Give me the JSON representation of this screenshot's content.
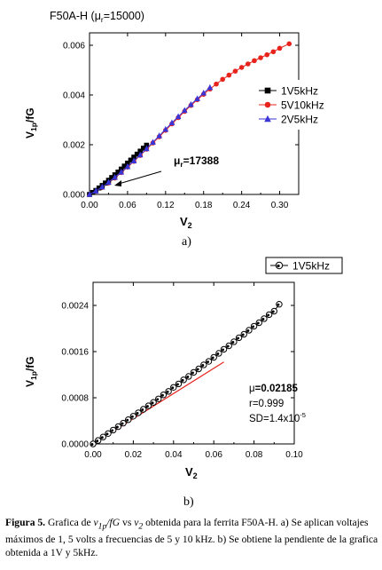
{
  "chart_data": [
    {
      "type": "scatter",
      "title": "F50A-H (μr=15000)",
      "title_main": "F50A-H (",
      "title_mu": "μ",
      "title_sub": "r",
      "title_tail": "=15000)",
      "ylabel_main": "V",
      "ylabel_sub": "1p",
      "ylabel_tail": "/fG",
      "xlabel_main": "V",
      "xlabel_sub": "2",
      "xlim": [
        0,
        0.33
      ],
      "ylim": [
        0,
        0.0065
      ],
      "xticks": [
        "0.00",
        "0.06",
        "0.12",
        "0.18",
        "0.24",
        "0.30"
      ],
      "yticks": [
        "0.000",
        "0.002",
        "0.004",
        "0.006"
      ],
      "legend_position": "right",
      "annotation": {
        "main": "μ",
        "sub": "r",
        "tail": "=17388"
      },
      "series": [
        {
          "name": "1V5kHz",
          "color": "#000000",
          "marker": "square",
          "x": [
            0.0,
            0.005,
            0.01,
            0.015,
            0.02,
            0.025,
            0.03,
            0.035,
            0.04,
            0.045,
            0.05,
            0.055,
            0.06,
            0.065,
            0.07,
            0.075,
            0.08,
            0.085,
            0.09
          ],
          "y": [
            0.0,
            8e-05,
            0.00016,
            0.00026,
            0.00036,
            0.00046,
            0.00057,
            0.00068,
            0.00079,
            0.0009,
            0.00102,
            0.00114,
            0.00126,
            0.00138,
            0.0015,
            0.00162,
            0.00174,
            0.00186,
            0.00198
          ]
        },
        {
          "name": "5V10kHz",
          "color": "#e8231c",
          "marker": "circle",
          "x": [
            0.0,
            0.01,
            0.02,
            0.03,
            0.04,
            0.05,
            0.06,
            0.07,
            0.08,
            0.09,
            0.1,
            0.11,
            0.12,
            0.13,
            0.14,
            0.15,
            0.16,
            0.17,
            0.18,
            0.19,
            0.2,
            0.21,
            0.22,
            0.23,
            0.24,
            0.25,
            0.26,
            0.27,
            0.28,
            0.29,
            0.3,
            0.315
          ],
          "y": [
            0.0,
            0.00013,
            0.00028,
            0.00046,
            0.00066,
            0.00088,
            0.0011,
            0.00133,
            0.00157,
            0.00182,
            0.00207,
            0.00232,
            0.00258,
            0.00284,
            0.00309,
            0.00334,
            0.00358,
            0.00381,
            0.00403,
            0.00424,
            0.00444,
            0.00463,
            0.0048,
            0.00496,
            0.00511,
            0.00525,
            0.00538,
            0.0055,
            0.00562,
            0.00574,
            0.00588,
            0.00606
          ]
        },
        {
          "name": "2V5kHz",
          "color": "#3a35d6",
          "marker": "triangle",
          "x": [
            0.0,
            0.01,
            0.02,
            0.03,
            0.04,
            0.05,
            0.06,
            0.07,
            0.08,
            0.09,
            0.1,
            0.11,
            0.12,
            0.13,
            0.14,
            0.15,
            0.16,
            0.17,
            0.18,
            0.19
          ],
          "y": [
            0.0,
            0.00014,
            0.0003,
            0.00049,
            0.00069,
            0.0009,
            0.00112,
            0.00135,
            0.00159,
            0.00184,
            0.0021,
            0.00236,
            0.00262,
            0.00288,
            0.00313,
            0.00338,
            0.00362,
            0.00385,
            0.00408,
            0.0043
          ]
        }
      ]
    },
    {
      "type": "scatter",
      "ylabel_main": "V",
      "ylabel_sub": "1p",
      "ylabel_tail": "/fG",
      "xlabel_main": "V",
      "xlabel_sub": "2",
      "xlim": [
        0,
        0.1
      ],
      "ylim": [
        0,
        0.0028
      ],
      "xticks": [
        "0.00",
        "0.02",
        "0.04",
        "0.06",
        "0.08",
        "0.10"
      ],
      "yticks": [
        "0.0000",
        "0.0008",
        "0.0016",
        "0.0024"
      ],
      "legend_position": "top-right",
      "series": [
        {
          "name": "1V5kHz",
          "color": "#000000",
          "marker": "open-circle",
          "x": [
            0.0,
            0.0025,
            0.005,
            0.0075,
            0.01,
            0.0125,
            0.015,
            0.0175,
            0.02,
            0.0225,
            0.025,
            0.0275,
            0.03,
            0.0325,
            0.035,
            0.0375,
            0.04,
            0.0425,
            0.045,
            0.0475,
            0.05,
            0.0525,
            0.055,
            0.0575,
            0.06,
            0.0625,
            0.065,
            0.0675,
            0.07,
            0.0725,
            0.075,
            0.0775,
            0.08,
            0.0825,
            0.085,
            0.0875,
            0.09,
            0.0925
          ],
          "y": [
            0.0,
            6e-05,
            0.00012,
            0.00018,
            0.00024,
            0.0003,
            0.00036,
            0.00042,
            0.00048,
            0.00054,
            0.0006,
            0.00066,
            0.00072,
            0.00078,
            0.00085,
            0.00091,
            0.00098,
            0.00104,
            0.00111,
            0.00117,
            0.00124,
            0.0013,
            0.00137,
            0.00143,
            0.0015,
            0.00157,
            0.00164,
            0.0017,
            0.00177,
            0.00184,
            0.0019,
            0.00197,
            0.00204,
            0.0021,
            0.00217,
            0.00224,
            0.0023,
            0.00242
          ]
        }
      ],
      "fit_line": {
        "color": "#e8231c",
        "x": [
          0.0,
          0.065
        ],
        "y": [
          0.0,
          0.00142
        ]
      },
      "annotation": {
        "mu_main": "μ",
        "mu_tail": "=0.02185",
        "r_text": "r=0.999",
        "sd_main": "SD=1.4x10",
        "sd_sup": "-5"
      }
    }
  ],
  "panel_labels": [
    "a)",
    "b)"
  ],
  "caption": {
    "label": "Figura 5.",
    "text1": " Grafica de ",
    "v1p": "v",
    "v1p_sub": "1p",
    "fg": "/fG",
    "text2": " vs ",
    "v2": "v",
    "v2_sub": "2",
    "text3": " obtenida para la ferrita F50A-H. a) Se aplican voltajes máximos de 1, 5 volts a frecuencias de 5 y 10 kHz. b) Se obtiene la pendiente de la grafica obtenida a 1V y 5kHz."
  }
}
